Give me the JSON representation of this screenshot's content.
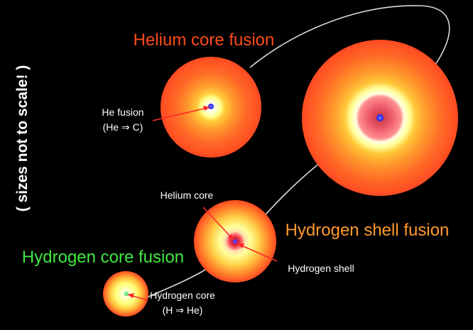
{
  "titles": {
    "helium_core_fusion": "Helium core fusion",
    "hydrogen_shell_fusion": "Hydrogen shell fusion",
    "hydrogen_core_fusion": "Hydrogen core fusion"
  },
  "side_note": "( sizes not to scale! )",
  "labels": {
    "he_fusion_line1": "He fusion",
    "he_fusion_line2": "(He ⇒ C)",
    "helium_core": "Helium core",
    "hydrogen_shell": "Hydrogen shell",
    "hydrogen_core_line1": "Hydrogen core",
    "hydrogen_core_line2": "(H ⇒ He)"
  },
  "colors": {
    "background": "#000000",
    "helium_title": "#ff4a1c",
    "hydrogen_shell_title": "#ff9a2e",
    "hydrogen_core_title": "#3fe83f",
    "label_text": "#ffffff",
    "pointer": "#ff2a2a",
    "track": "#d8d8d8",
    "star_outer": "#ff4a22",
    "star_mid": "#ffb23a",
    "star_inner": "#ffff9a",
    "core_red": "#d8303e",
    "he_fusion_dot": "#3a3aff",
    "h_core_dot": "#2ed84a"
  }
}
